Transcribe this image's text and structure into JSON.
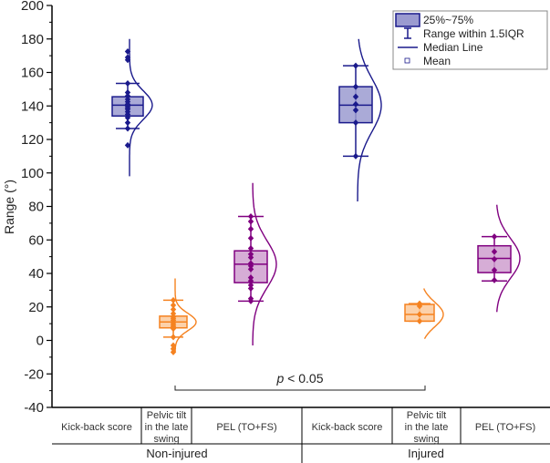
{
  "chart_data": {
    "type": "box",
    "title": "",
    "ylabel": "Range (°)",
    "xlabel": "",
    "ylim": [
      -40,
      200
    ],
    "yticks": [
      200,
      180,
      160,
      140,
      120,
      100,
      80,
      60,
      40,
      20,
      0,
      -20,
      -40
    ],
    "tick_labels": [
      "200",
      "180",
      "160",
      "140",
      "120",
      "100",
      "80",
      "60",
      "40",
      "20",
      "0",
      "-20",
      "-40"
    ],
    "categories": [
      "Kick-back score",
      "Pelvic tilt in the late swing",
      "PEL (TO+FS)",
      "Kick-back score",
      "Pelvic tilt in the late swing",
      "PEL (TO+FS)"
    ],
    "category_lines": [
      [
        "Kick-back score"
      ],
      [
        "Pelvic tilt",
        "in the late",
        "swing"
      ],
      [
        "PEL (TO+FS)"
      ],
      [
        "Kick-back score"
      ],
      [
        "Pelvic tilt",
        "in the late",
        "swing"
      ],
      [
        "PEL (TO+FS)"
      ]
    ],
    "groups": [
      "Non-injured",
      "Injured"
    ],
    "series": [
      {
        "name": "Kick-back score (Non-injured)",
        "group": "Non-injured",
        "color": "#1a1a8c",
        "fill": "#9b9bd0",
        "q1": 134,
        "median": 140.5,
        "q3": 145.5,
        "whisker_low": 126.5,
        "whisker_high": 153.5,
        "points": [
          172.5,
          169,
          167.5,
          153.5,
          148,
          146,
          144,
          142.5,
          141,
          140,
          139,
          138,
          136.5,
          135,
          133,
          130,
          126.5,
          116.5
        ],
        "curve_range": [
          98,
          180
        ]
      },
      {
        "name": "Pelvic tilt in the late swing (Non-injured)",
        "group": "Non-injured",
        "color": "#f58220",
        "fill": "#fbc99b",
        "q1": 7.5,
        "median": 11,
        "q3": 14.5,
        "whisker_low": 2,
        "whisker_high": 24,
        "points": [
          24,
          21,
          18.5,
          16,
          14,
          13,
          12,
          11,
          10,
          9,
          8,
          7,
          2,
          -3,
          -5,
          -7
        ],
        "curve_range": [
          -7,
          37
        ]
      },
      {
        "name": "PEL (TO+FS) (Non-injured)",
        "group": "Non-injured",
        "color": "#800080",
        "fill": "#cf9fcf",
        "q1": 34.5,
        "median": 45.5,
        "q3": 53.5,
        "whisker_low": 23.5,
        "whisker_high": 74,
        "points": [
          74,
          71,
          66.5,
          61,
          55,
          51.5,
          49.5,
          46,
          44.5,
          42.5,
          37.5,
          35.5,
          33,
          31,
          25,
          23.5
        ],
        "curve_range": [
          -3,
          94
        ]
      },
      {
        "name": "Kick-back score (Injured)",
        "group": "Injured",
        "color": "#1a1a8c",
        "fill": "#9b9bd0",
        "q1": 130,
        "median": 140.5,
        "q3": 151.5,
        "whisker_low": 110,
        "whisker_high": 164,
        "points": [
          164,
          151.5,
          145.5,
          141,
          137.5,
          130,
          110
        ],
        "curve_range": [
          83,
          180
        ]
      },
      {
        "name": "Pelvic tilt in the late swing (Injured)",
        "group": "Injured",
        "color": "#f58220",
        "fill": "#fbc99b",
        "q1": 11.5,
        "median": 15.5,
        "q3": 21.5,
        "whisker_low": 11.5,
        "whisker_high": 22,
        "points": [
          22,
          20.5,
          15.5,
          11.5
        ],
        "curve_range": [
          1,
          31
        ]
      },
      {
        "name": "PEL (TO+FS) (Injured)",
        "group": "Injured",
        "color": "#800080",
        "fill": "#cf9fcf",
        "q1": 40.5,
        "median": 49,
        "q3": 56.5,
        "whisker_low": 35.5,
        "whisker_high": 62,
        "points": [
          62,
          53,
          48.5,
          42,
          36
        ],
        "curve_range": [
          17,
          81
        ]
      }
    ],
    "legend": {
      "position": "top-right",
      "entries": [
        "25%~75%",
        "Range within 1.5IQR",
        "Median Line",
        "Mean"
      ]
    },
    "annotation": {
      "text_p": "p",
      "text_rest": " < 0.05",
      "from_category": 2,
      "to_category": 5,
      "y": -28
    }
  }
}
